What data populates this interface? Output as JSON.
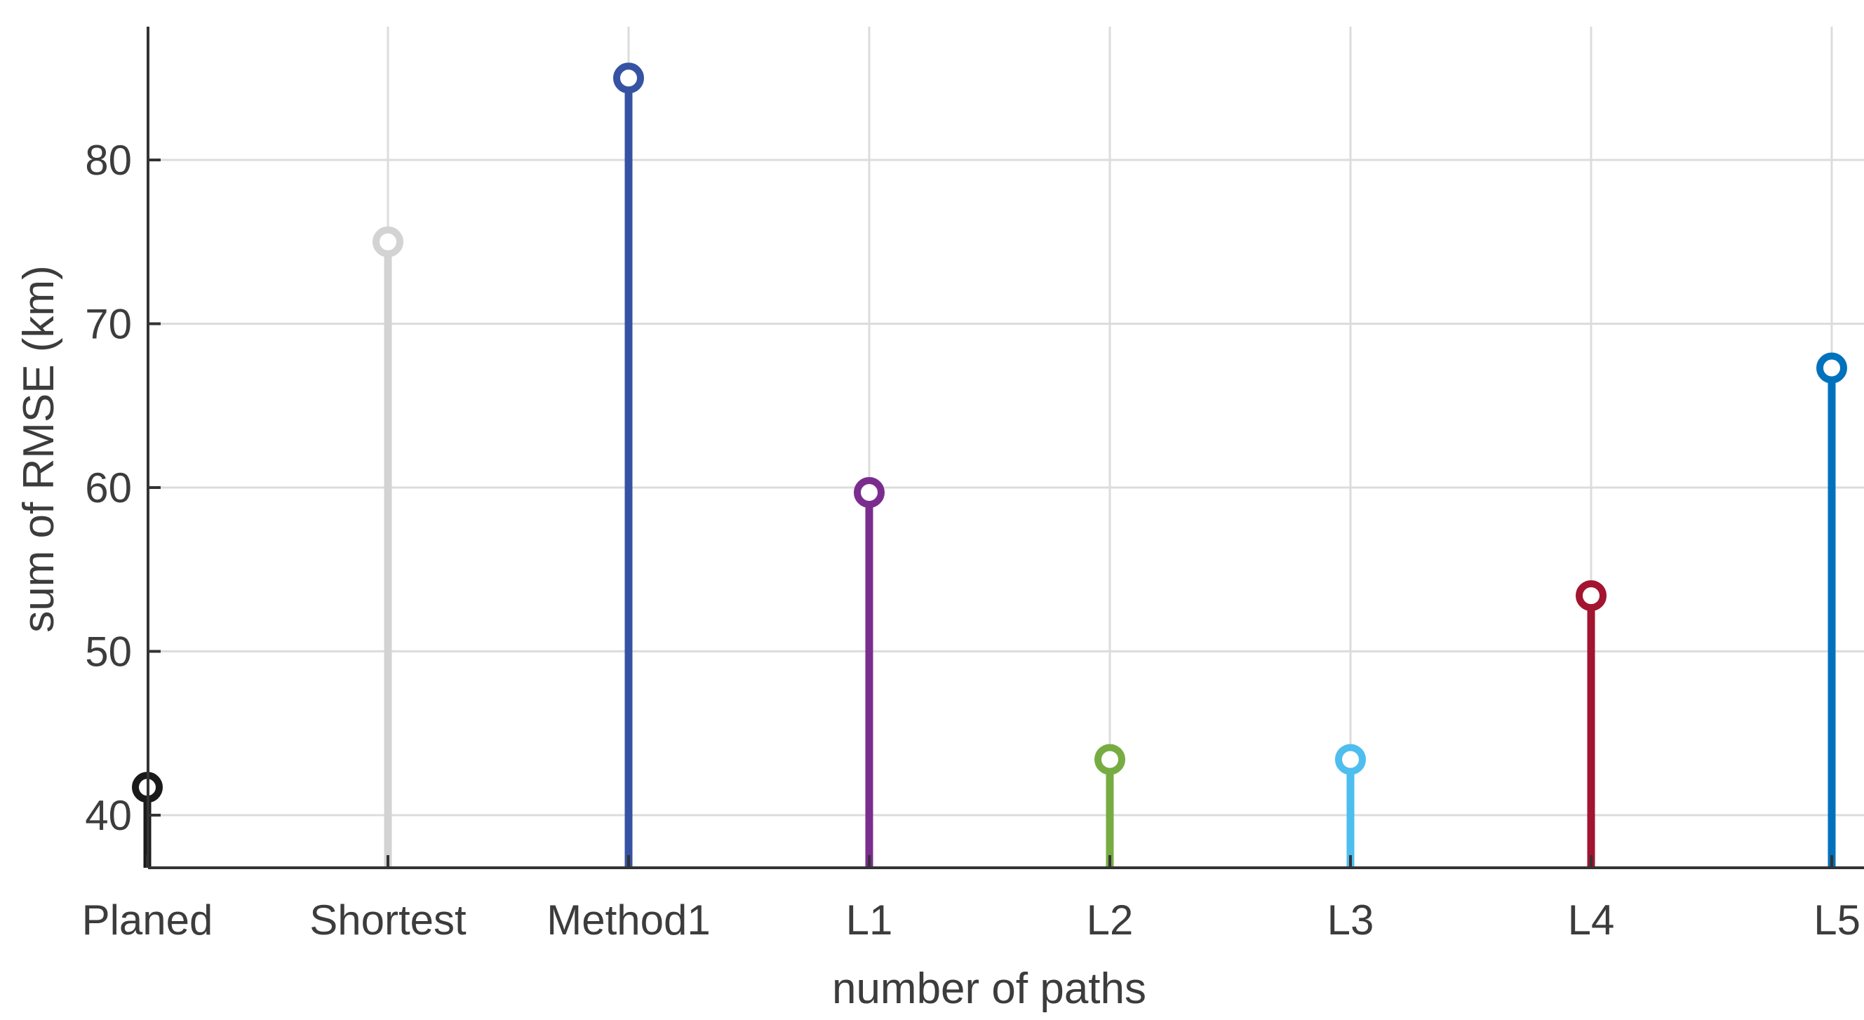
{
  "chart_data": {
    "type": "stem",
    "title": "",
    "xlabel": "number of paths",
    "ylabel": "sum of RMSE (km)",
    "categories": [
      "Planed",
      "Shortest",
      "Method1",
      "L1",
      "L2",
      "L3",
      "L4",
      "L5"
    ],
    "values": [
      41.7,
      75.0,
      85.0,
      59.7,
      43.4,
      43.4,
      53.4,
      67.3
    ],
    "colors": [
      "#1a1a1a",
      "#d3d3d3",
      "#3653a3",
      "#7b2d8e",
      "#77ac43",
      "#4dbeee",
      "#a2142f",
      "#0072bd"
    ],
    "ylim": [
      36.7,
      90
    ],
    "yticks": [
      40,
      50,
      60,
      70,
      80
    ],
    "grid": true,
    "marker": "open-circle"
  }
}
